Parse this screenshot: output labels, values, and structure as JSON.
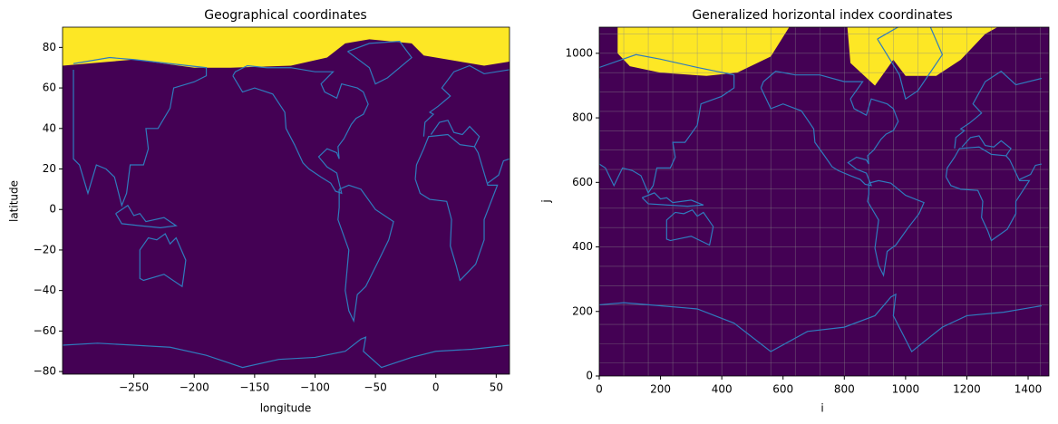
{
  "chart_data": [
    {
      "type": "map",
      "title": "Geographical coordinates",
      "xlabel": "longitude",
      "ylabel": "latitude",
      "xlim": [
        -309,
        61
      ],
      "ylim": [
        -81.3,
        90
      ],
      "xticks": [
        {
          "value": -250,
          "label": "−250"
        },
        {
          "value": -200,
          "label": "−200"
        },
        {
          "value": -150,
          "label": "−150"
        },
        {
          "value": -100,
          "label": "−100"
        },
        {
          "value": -50,
          "label": "−50"
        },
        0,
        50
      ],
      "yticks": [
        {
          "value": -80,
          "label": "−80"
        },
        {
          "value": -60,
          "label": "−60"
        },
        {
          "value": -40,
          "label": "−40"
        },
        {
          "value": -20,
          "label": "−20"
        },
        0,
        20,
        40,
        60,
        80
      ],
      "colors": [
        "#440154",
        "#fde725"
      ],
      "coast_color": "#2f7bbd",
      "grid": false
    },
    {
      "type": "map",
      "title": "Generalized horizontal index coordinates",
      "xlabel": "i",
      "ylabel": "j",
      "xlim": [
        0,
        1468
      ],
      "ylim": [
        0,
        1081
      ],
      "xticks": [
        0,
        200,
        400,
        600,
        800,
        1000,
        1200,
        1400
      ],
      "yticks": [
        0,
        200,
        400,
        600,
        800,
        1000
      ],
      "colors": [
        "#440154",
        "#fde725"
      ],
      "coast_color": "#2f7bbd",
      "grid": true
    }
  ]
}
